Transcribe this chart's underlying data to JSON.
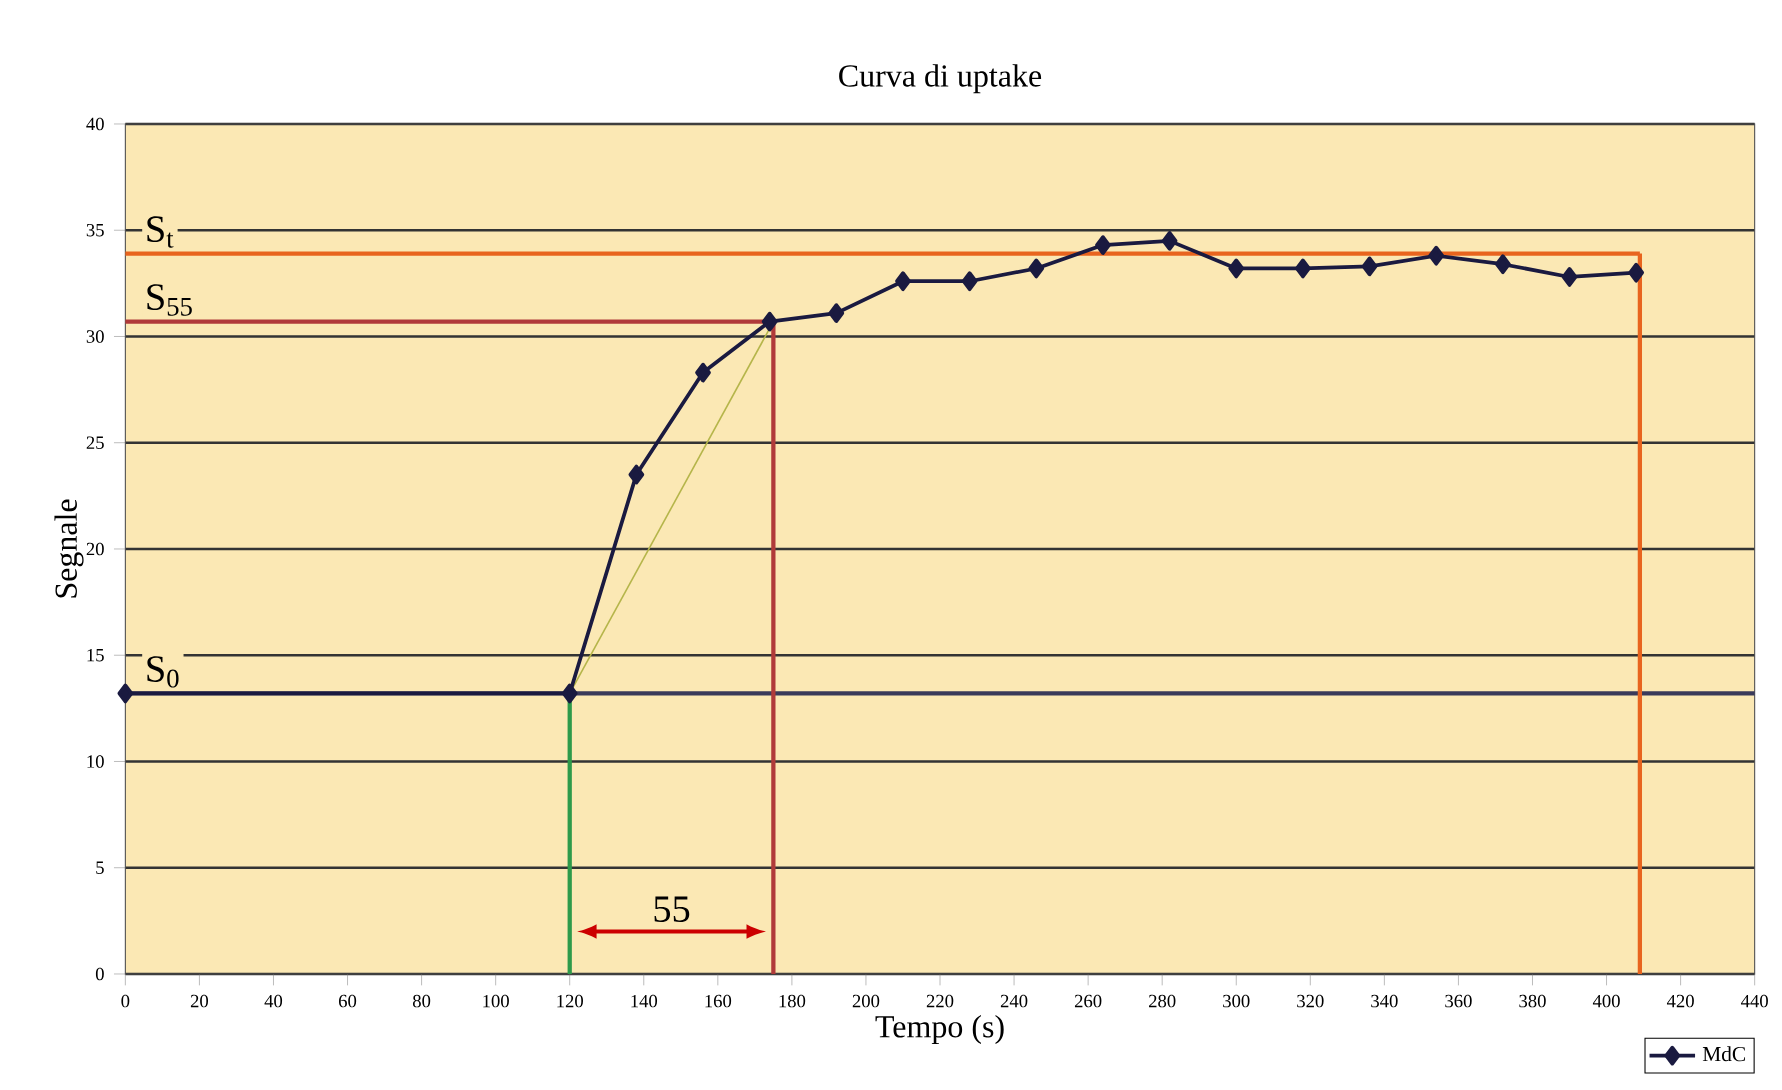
{
  "chart_data": {
    "type": "line",
    "title": "Curva di uptake",
    "xlabel": "Tempo (s)",
    "ylabel": "Segnale",
    "xlim": [
      0,
      440
    ],
    "xticks": [
      0,
      20,
      40,
      60,
      80,
      100,
      120,
      140,
      160,
      180,
      200,
      220,
      240,
      260,
      280,
      300,
      320,
      340,
      360,
      380,
      400,
      420,
      440
    ],
    "ylim": [
      0,
      40
    ],
    "yticks": [
      0,
      5,
      10,
      15,
      20,
      25,
      30,
      35,
      40
    ],
    "grid": "y",
    "legend": "bottom right",
    "marker": "diamond",
    "line_style": "solid",
    "series": [
      {
        "name": "MdC",
        "color": "#1a1a40",
        "x": [
          0,
          120,
          138,
          156,
          174,
          192,
          210,
          228,
          246,
          264,
          282,
          300,
          318,
          336,
          354,
          372,
          390,
          408
        ],
        "values": [
          13.2,
          13.2,
          23.5,
          28.3,
          30.7,
          31.1,
          32.6,
          32.6,
          33.2,
          34.3,
          34.5,
          33.2,
          33.2,
          33.3,
          33.8,
          33.4,
          32.8,
          33.0
        ]
      },
      {
        "type": "line",
        "color": "#b5b54a",
        "marker": "none",
        "x": [
          120,
          175
        ],
        "values": [
          13.2,
          30.7
        ]
      }
    ],
    "ref_lines": [
      {
        "axis": "y",
        "value": 33.9,
        "label": "S$_{t}$",
        "color": "#e8641e"
      },
      {
        "axis": "y",
        "value": 30.7,
        "label": "S$_{55}$",
        "color": "#b03a3a"
      },
      {
        "axis": "y",
        "value": 13.2,
        "label": "S$_{0}$",
        "color": "#3a3a5a"
      },
      {
        "axis": "x",
        "value": 120,
        "color": "#2e9a4a"
      },
      {
        "axis": "x",
        "value": 175,
        "color": "#b03a3a"
      },
      {
        "axis": "x",
        "value": 409,
        "color": "#e8641e"
      }
    ],
    "annotations": [
      "55"
    ]
  }
}
